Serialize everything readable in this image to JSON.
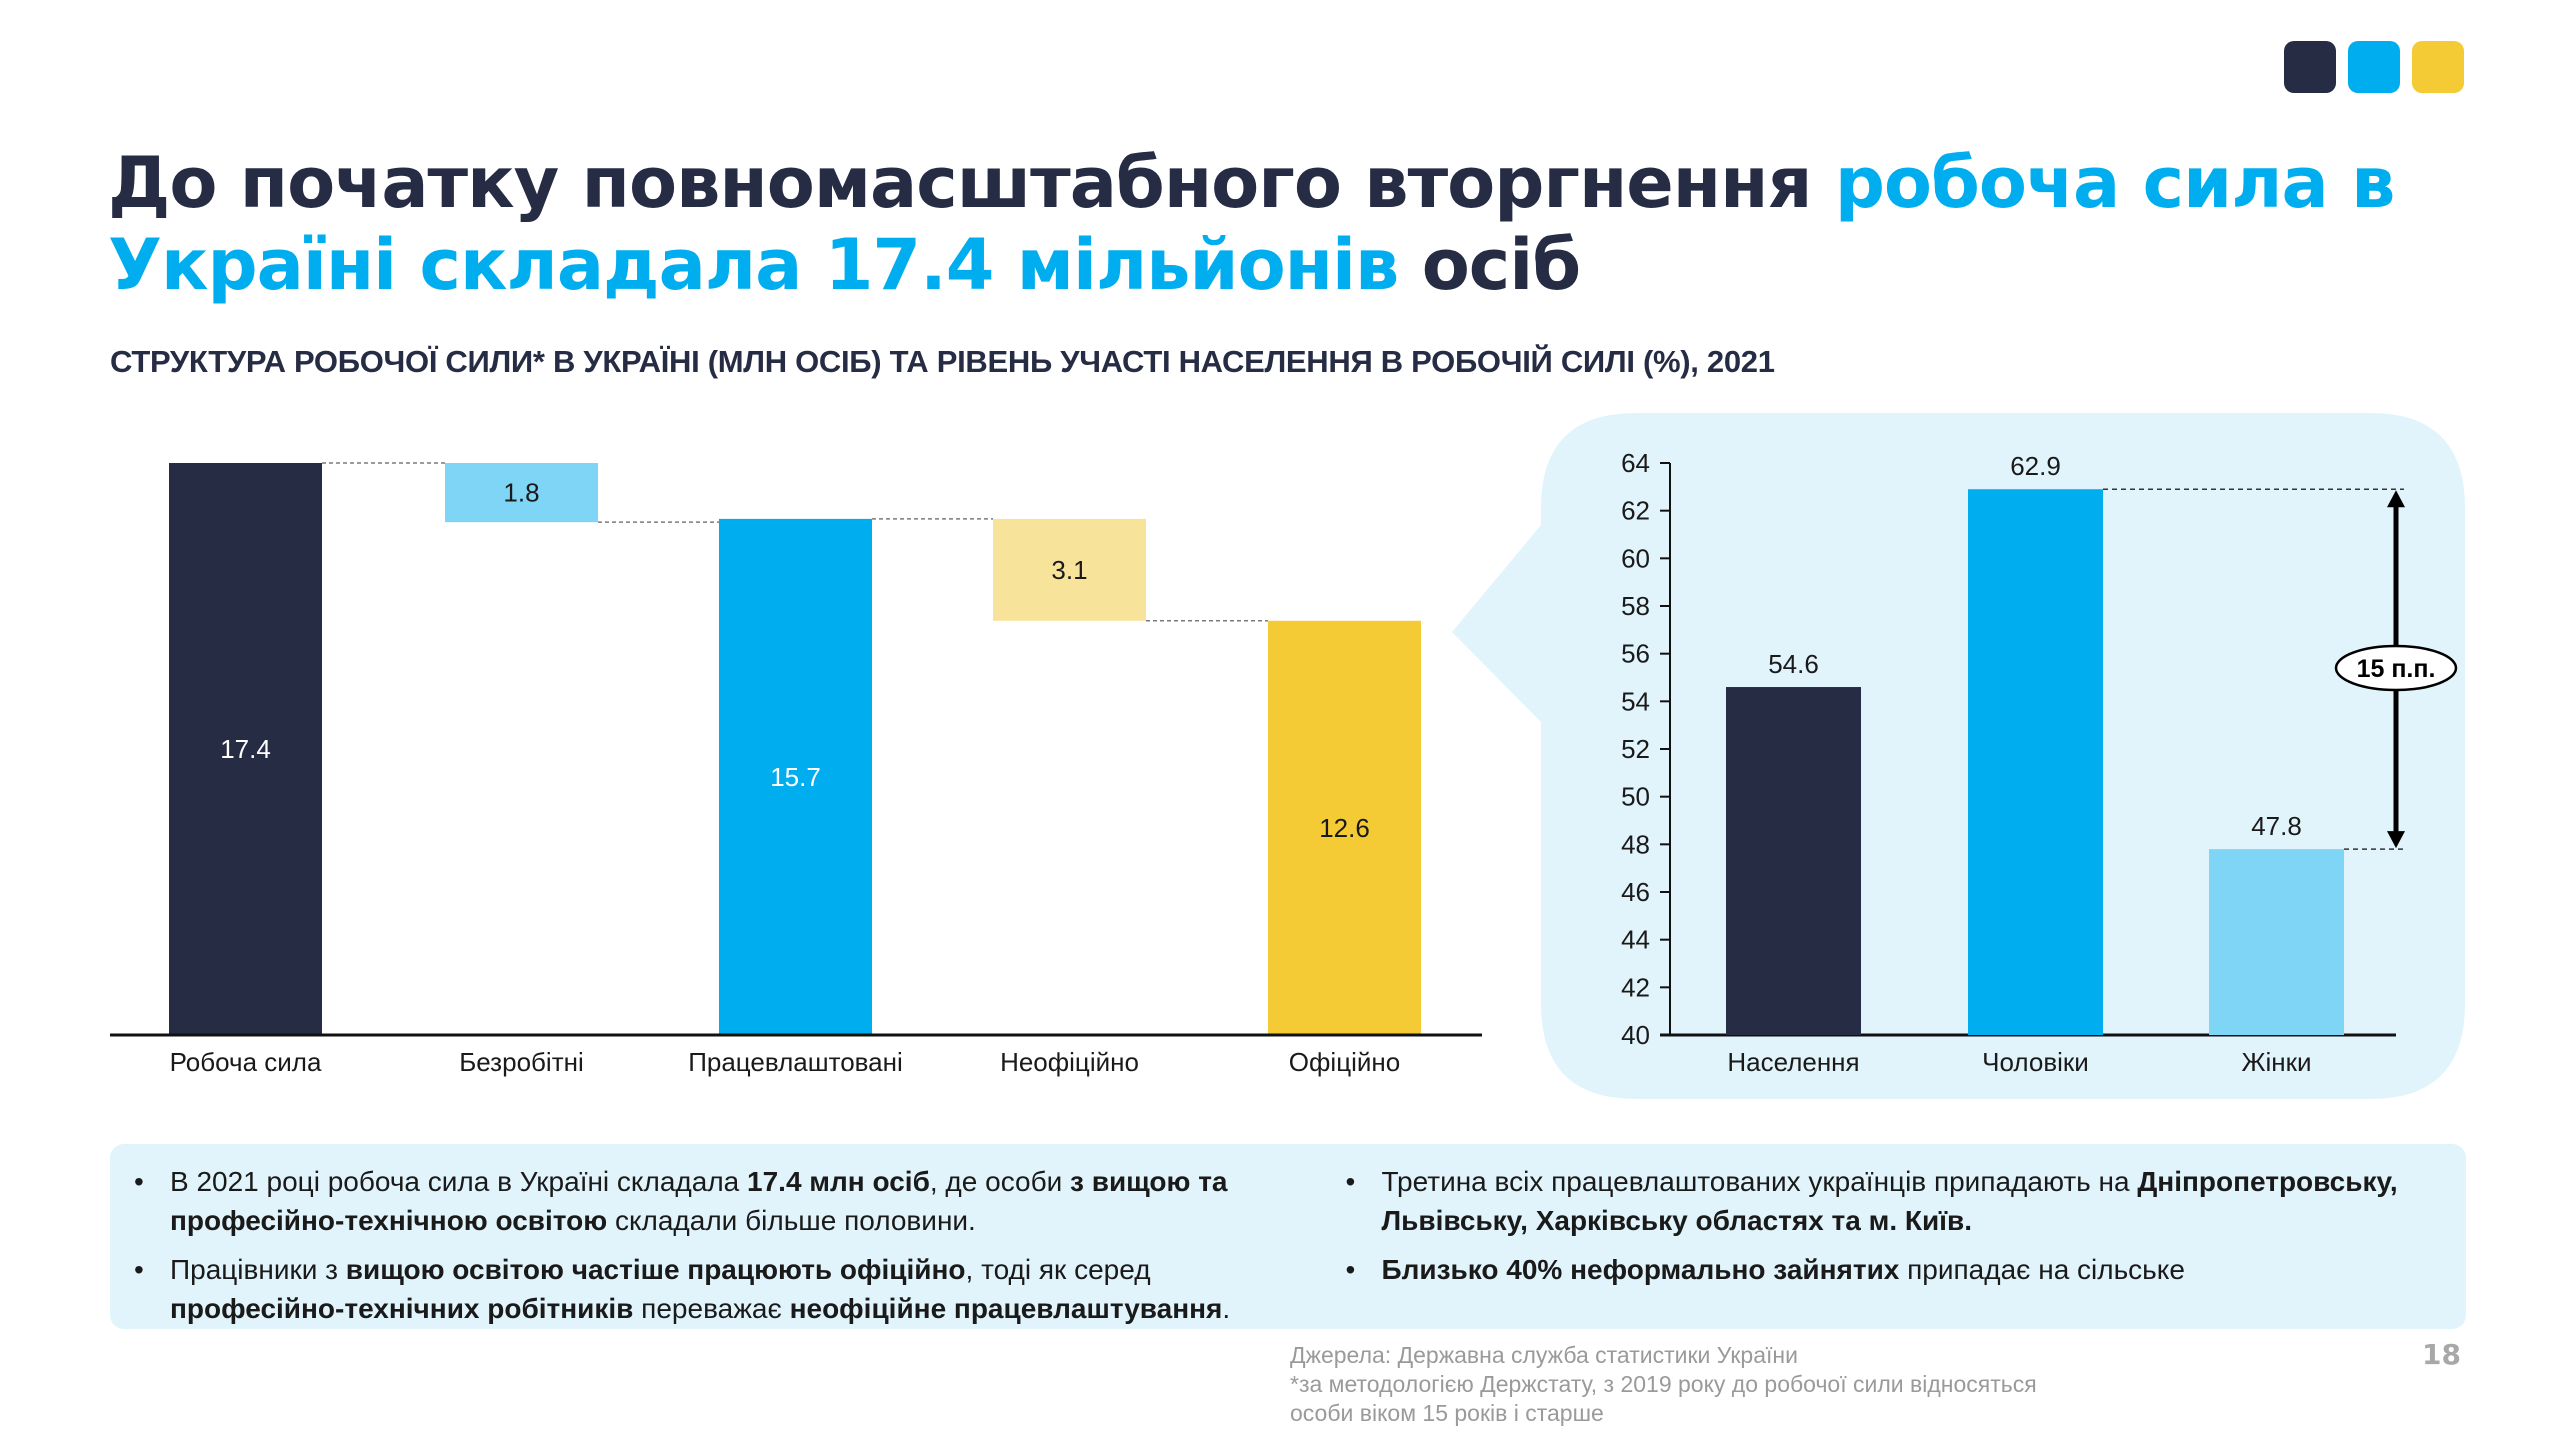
{
  "brand_colors": {
    "navy": "#272c45",
    "blue": "#00aeef",
    "yellow": "#f4cb35",
    "light_blue": "#7fd5f5",
    "light_yellow": "#f8e39b",
    "panel": "#e1f4fb"
  },
  "title": {
    "part1": "До початку повномасштабного вторгнення ",
    "part2": "робоча сила в Україні складала 17.4 мільйонів",
    "part3": " осіб"
  },
  "subtitle": "СТРУКТУРА РОБОЧОЇ СИЛИ* В УКРАЇНІ (МЛН ОСІБ) ТА РІВЕНЬ УЧАСТІ НАСЕЛЕННЯ В РОБОЧІЙ СИЛІ (%), 2021",
  "chart_data": [
    {
      "type": "bar",
      "subtype": "waterfall",
      "title": "Структура робочої сили (млн осіб)",
      "categories": [
        "Робоча сила",
        "Безробітні",
        "Працевлаштовані",
        "Неофіційно",
        "Офіційно"
      ],
      "values": [
        17.4,
        1.8,
        15.7,
        3.1,
        12.6
      ],
      "bar_kind": [
        "total",
        "decrease",
        "total",
        "decrease",
        "total"
      ],
      "labels": [
        "17.4",
        "1.8",
        "15.7",
        "3.1",
        "12.6"
      ],
      "colors": [
        "#272c45",
        "#7fd5f5",
        "#00aeef",
        "#f8e39b",
        "#f4cb35"
      ],
      "label_colors": [
        "#ffffff",
        "#1a1a1a",
        "#ffffff",
        "#1a1a1a",
        "#1a1a1a"
      ],
      "ylim": [
        0,
        17.4
      ],
      "grid": false,
      "xlabel": "",
      "ylabel": ""
    },
    {
      "type": "bar",
      "title": "Рівень участі населення в робочій силі (%)",
      "categories": [
        "Населення",
        "Чоловіки",
        "Жінки"
      ],
      "values": [
        54.6,
        62.9,
        47.8
      ],
      "labels": [
        "54.6",
        "62.9",
        "47.8"
      ],
      "colors": [
        "#272c45",
        "#00aeef",
        "#7fd5f5"
      ],
      "ylim": [
        40,
        64
      ],
      "yticks": [
        40,
        42,
        44,
        46,
        48,
        50,
        52,
        54,
        56,
        58,
        60,
        62,
        64
      ],
      "grid": false,
      "annotation": {
        "text": "15 п.п.",
        "from": 62.9,
        "to": 47.8
      },
      "xlabel": "",
      "ylabel": ""
    }
  ],
  "bullets": {
    "col1": [
      [
        {
          "t": "В 2021 році робоча сила в Україні складала ",
          "b": false
        },
        {
          "t": "17.4 млн осіб",
          "b": true
        },
        {
          "t": ", де особи ",
          "b": false
        },
        {
          "t": "з вищою та професійно-технічною освітою",
          "b": true
        },
        {
          "t": " складали більше половини.",
          "b": false
        }
      ],
      [
        {
          "t": "Працівники з ",
          "b": false
        },
        {
          "t": "вищою освітою частіше працюють офіційно",
          "b": true
        },
        {
          "t": ", тоді як серед ",
          "b": false
        },
        {
          "t": "професійно-технічних робітників",
          "b": true
        },
        {
          "t": " переважає ",
          "b": false
        },
        {
          "t": "неофіційне працевлаштування",
          "b": true
        },
        {
          "t": ".",
          "b": false
        }
      ]
    ],
    "col2": [
      [
        {
          "t": "Третина всіх працевлаштованих українців припадають на ",
          "b": false
        },
        {
          "t": "Дніпропетровську, Львівську, Харківську областях та м. Київ.",
          "b": true
        }
      ],
      [
        {
          "t": "Близько 40% неформально зайнятих",
          "b": true
        },
        {
          "t": " припадає на сільське",
          "b": false
        }
      ]
    ]
  },
  "footer": {
    "source": "Джерела: Державна служба статистики України",
    "note_line1": "*за методологією Держстату, з 2019 року до робочої сили відносяться",
    "note_line2": "особи віком 15 років і старше"
  },
  "page_number": "18"
}
